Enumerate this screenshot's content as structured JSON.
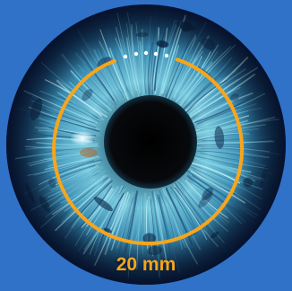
{
  "scene": {
    "subject": "iris",
    "background_color": "#2f72c8",
    "ring_color": "#f7a51d",
    "pupil_color": "#050608"
  },
  "measurement": {
    "label": "20 mm"
  }
}
